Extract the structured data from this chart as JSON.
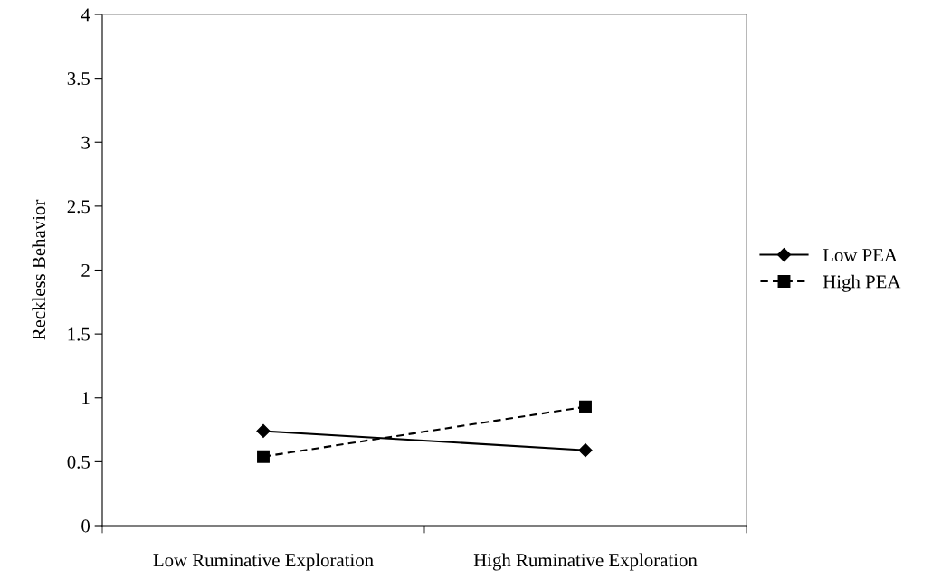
{
  "chart_data": {
    "type": "line",
    "ylabel": "Reckless Behavior",
    "categories": [
      "Low Ruminative Exploration",
      "High Ruminative Exploration"
    ],
    "series": [
      {
        "name": "Low PEA",
        "color": "#000000",
        "values": [
          0.74,
          0.59
        ],
        "marker": "diamond",
        "line_style": "solid"
      },
      {
        "name": "High PEA",
        "color": "#000000",
        "values": [
          0.54,
          0.93
        ],
        "marker": "square",
        "line_style": "dashed"
      }
    ],
    "ylim": [
      0,
      4
    ],
    "yticks": [
      0,
      0.5,
      1,
      1.5,
      2,
      2.5,
      3,
      3.5,
      4
    ],
    "grid": false,
    "legend": "right"
  }
}
